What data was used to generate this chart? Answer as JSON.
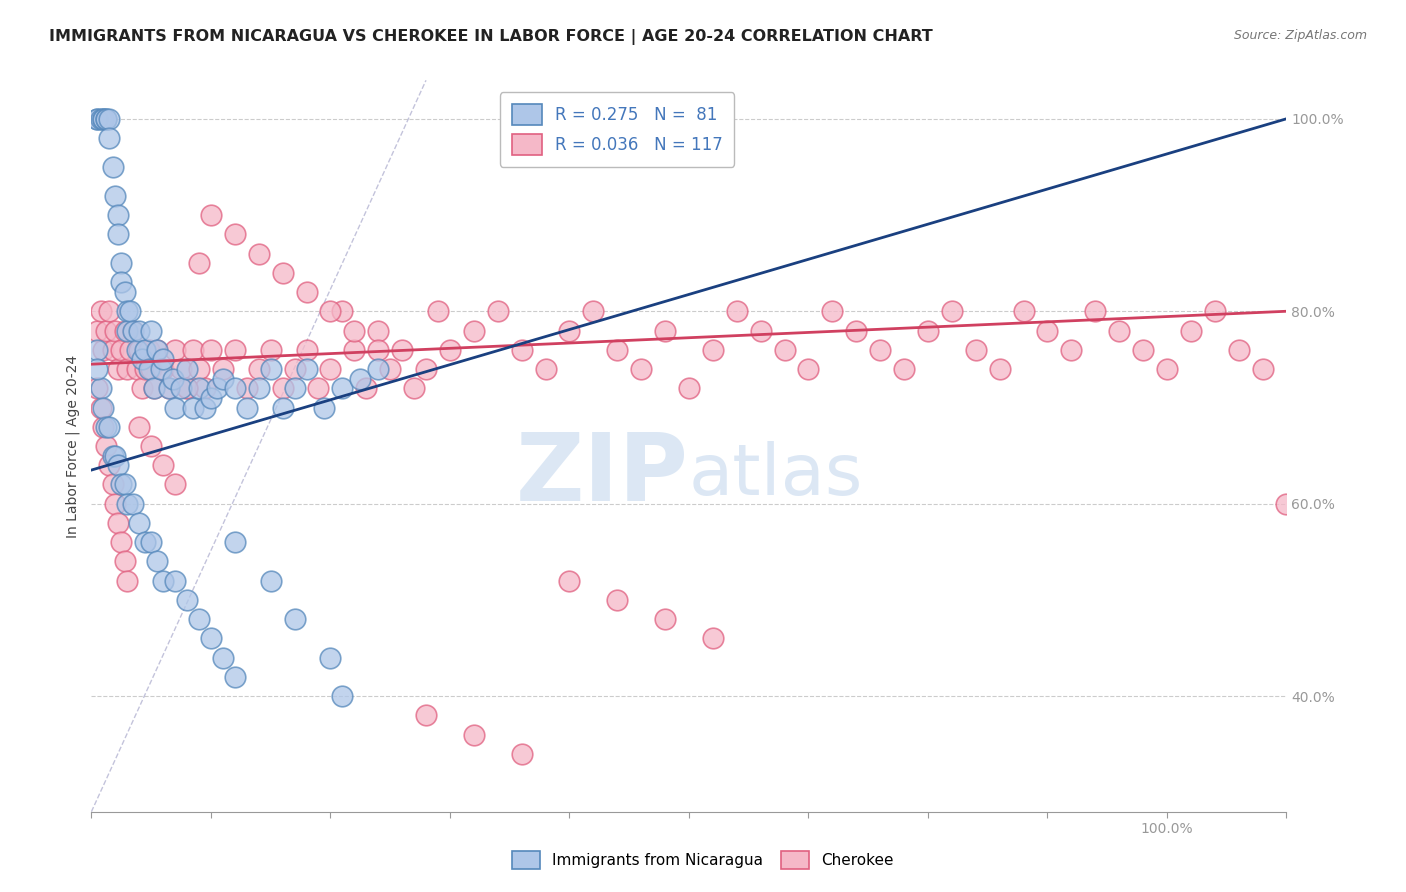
{
  "title": "IMMIGRANTS FROM NICARAGUA VS CHEROKEE IN LABOR FORCE | AGE 20-24 CORRELATION CHART",
  "source": "Source: ZipAtlas.com",
  "ylabel": "In Labor Force | Age 20-24",
  "r_nicaragua": 0.275,
  "n_nicaragua": 81,
  "r_cherokee": 0.036,
  "n_cherokee": 117,
  "nicaragua_color": "#aec6e8",
  "cherokee_color": "#f5b8c8",
  "nicaragua_edge": "#5588bb",
  "cherokee_edge": "#e06080",
  "trendline_nicaragua_color": "#1a4080",
  "trendline_cherokee_color": "#d04060",
  "watermark_color": "#c5d8ee",
  "background_color": "#ffffff",
  "grid_color": "#cccccc",
  "tick_color": "#4477bb",
  "xlim": [
    0.0,
    1.0
  ],
  "ylim": [
    0.28,
    1.04
  ],
  "yticks": [
    0.4,
    0.6,
    0.8,
    1.0
  ],
  "ytick_labels": [
    "40.0%",
    "60.0%",
    "80.0%",
    "100.0%"
  ],
  "nic_trendline_x0": 0.0,
  "nic_trendline_y0": 0.635,
  "nic_trendline_x1": 1.0,
  "nic_trendline_y1": 1.0,
  "che_trendline_x0": 0.0,
  "che_trendline_y0": 0.745,
  "che_trendline_x1": 1.0,
  "che_trendline_y1": 0.8,
  "nicaragua_x": [
    0.005,
    0.005,
    0.008,
    0.01,
    0.01,
    0.012,
    0.012,
    0.015,
    0.015,
    0.018,
    0.02,
    0.022,
    0.022,
    0.025,
    0.025,
    0.028,
    0.03,
    0.03,
    0.032,
    0.035,
    0.038,
    0.04,
    0.042,
    0.045,
    0.048,
    0.05,
    0.052,
    0.055,
    0.058,
    0.06,
    0.065,
    0.068,
    0.07,
    0.075,
    0.08,
    0.085,
    0.09,
    0.095,
    0.1,
    0.105,
    0.11,
    0.12,
    0.13,
    0.14,
    0.15,
    0.16,
    0.17,
    0.18,
    0.195,
    0.21,
    0.225,
    0.24,
    0.008,
    0.01,
    0.012,
    0.015,
    0.018,
    0.02,
    0.022,
    0.025,
    0.028,
    0.03,
    0.035,
    0.04,
    0.045,
    0.05,
    0.055,
    0.06,
    0.07,
    0.08,
    0.09,
    0.1,
    0.11,
    0.12,
    0.005,
    0.005,
    0.12,
    0.15,
    0.17,
    0.2,
    0.21
  ],
  "nicaragua_y": [
    1.0,
    1.0,
    1.0,
    1.0,
    1.0,
    1.0,
    1.0,
    1.0,
    0.98,
    0.95,
    0.92,
    0.9,
    0.88,
    0.85,
    0.83,
    0.82,
    0.8,
    0.78,
    0.8,
    0.78,
    0.76,
    0.78,
    0.75,
    0.76,
    0.74,
    0.78,
    0.72,
    0.76,
    0.74,
    0.75,
    0.72,
    0.73,
    0.7,
    0.72,
    0.74,
    0.7,
    0.72,
    0.7,
    0.71,
    0.72,
    0.73,
    0.72,
    0.7,
    0.72,
    0.74,
    0.7,
    0.72,
    0.74,
    0.7,
    0.72,
    0.73,
    0.74,
    0.72,
    0.7,
    0.68,
    0.68,
    0.65,
    0.65,
    0.64,
    0.62,
    0.62,
    0.6,
    0.6,
    0.58,
    0.56,
    0.56,
    0.54,
    0.52,
    0.52,
    0.5,
    0.48,
    0.46,
    0.44,
    0.42,
    0.76,
    0.74,
    0.56,
    0.52,
    0.48,
    0.44,
    0.4
  ],
  "cherokee_x": [
    0.005,
    0.008,
    0.01,
    0.012,
    0.015,
    0.018,
    0.02,
    0.022,
    0.025,
    0.028,
    0.03,
    0.032,
    0.035,
    0.038,
    0.04,
    0.042,
    0.045,
    0.048,
    0.05,
    0.052,
    0.055,
    0.06,
    0.065,
    0.07,
    0.075,
    0.08,
    0.085,
    0.09,
    0.095,
    0.1,
    0.11,
    0.12,
    0.13,
    0.14,
    0.15,
    0.16,
    0.17,
    0.18,
    0.19,
    0.2,
    0.21,
    0.22,
    0.23,
    0.24,
    0.25,
    0.26,
    0.27,
    0.28,
    0.29,
    0.3,
    0.32,
    0.34,
    0.36,
    0.38,
    0.4,
    0.42,
    0.44,
    0.46,
    0.48,
    0.5,
    0.52,
    0.54,
    0.56,
    0.58,
    0.6,
    0.62,
    0.64,
    0.66,
    0.68,
    0.7,
    0.72,
    0.74,
    0.76,
    0.78,
    0.8,
    0.82,
    0.84,
    0.86,
    0.88,
    0.9,
    0.92,
    0.94,
    0.96,
    0.98,
    1.0,
    0.005,
    0.008,
    0.01,
    0.012,
    0.015,
    0.018,
    0.02,
    0.022,
    0.025,
    0.028,
    0.03,
    0.04,
    0.05,
    0.06,
    0.07,
    0.08,
    0.09,
    0.1,
    0.12,
    0.14,
    0.16,
    0.18,
    0.2,
    0.22,
    0.24,
    0.28,
    0.32,
    0.36,
    0.4,
    0.44,
    0.48,
    0.52
  ],
  "cherokee_y": [
    0.78,
    0.8,
    0.76,
    0.78,
    0.8,
    0.76,
    0.78,
    0.74,
    0.76,
    0.78,
    0.74,
    0.76,
    0.78,
    0.74,
    0.76,
    0.72,
    0.74,
    0.76,
    0.74,
    0.72,
    0.76,
    0.74,
    0.72,
    0.76,
    0.74,
    0.72,
    0.76,
    0.74,
    0.72,
    0.76,
    0.74,
    0.76,
    0.72,
    0.74,
    0.76,
    0.72,
    0.74,
    0.76,
    0.72,
    0.74,
    0.8,
    0.76,
    0.72,
    0.78,
    0.74,
    0.76,
    0.72,
    0.74,
    0.8,
    0.76,
    0.78,
    0.8,
    0.76,
    0.74,
    0.78,
    0.8,
    0.76,
    0.74,
    0.78,
    0.72,
    0.76,
    0.8,
    0.78,
    0.76,
    0.74,
    0.8,
    0.78,
    0.76,
    0.74,
    0.78,
    0.8,
    0.76,
    0.74,
    0.8,
    0.78,
    0.76,
    0.8,
    0.78,
    0.76,
    0.74,
    0.78,
    0.8,
    0.76,
    0.74,
    0.6,
    0.72,
    0.7,
    0.68,
    0.66,
    0.64,
    0.62,
    0.6,
    0.58,
    0.56,
    0.54,
    0.52,
    0.68,
    0.66,
    0.64,
    0.62,
    0.72,
    0.85,
    0.9,
    0.88,
    0.86,
    0.84,
    0.82,
    0.8,
    0.78,
    0.76,
    0.38,
    0.36,
    0.34,
    0.52,
    0.5,
    0.48,
    0.46
  ]
}
